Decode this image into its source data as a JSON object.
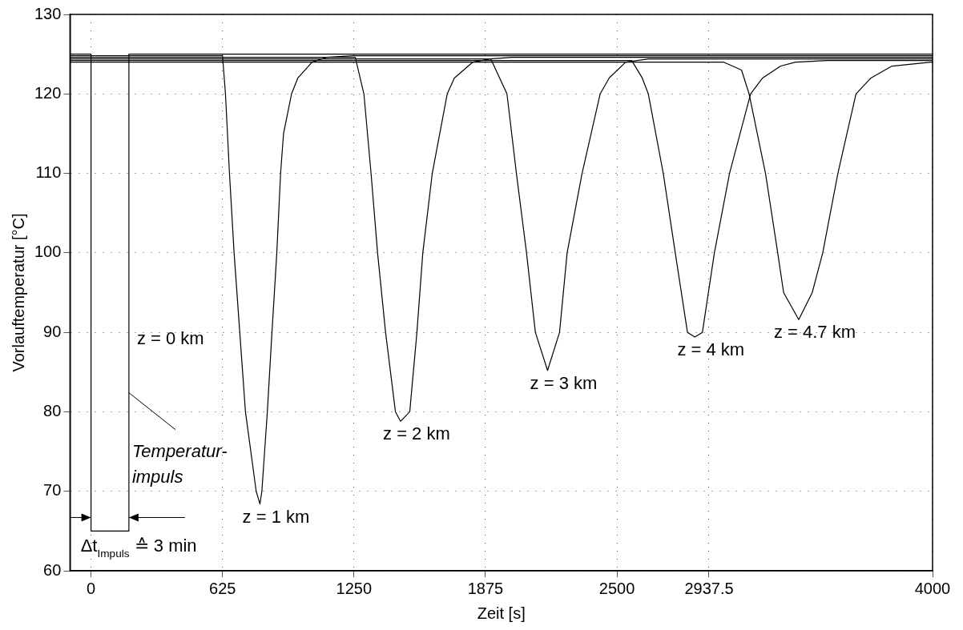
{
  "chart_data": {
    "type": "line",
    "xlabel": "Zeit [s]",
    "ylabel": "Vorlauftemperatur [°C]",
    "xlim": [
      -100,
      4000
    ],
    "xticks": [
      0,
      625,
      1250,
      1875,
      2500,
      2937.5,
      4000
    ],
    "ylim": [
      60,
      130
    ],
    "yticks": [
      60,
      70,
      80,
      90,
      100,
      110,
      120,
      130
    ],
    "grid": true,
    "series": [
      {
        "name": "z = 0 km",
        "color": "#000000",
        "x": [
          -100,
          0,
          0,
          180,
          180,
          4000
        ],
        "values": [
          125,
          125,
          65,
          65,
          125,
          125
        ]
      },
      {
        "name": "z = 1 km",
        "color": "#000000",
        "x": [
          -100,
          625,
          639,
          658,
          680,
          707,
          734,
          785,
          803,
          812,
          838,
          860,
          883,
          901,
          915,
          953,
          983,
          1051,
          1119,
          1246,
          4000
        ],
        "values": [
          124.8,
          124.8,
          120,
          110,
          100,
          90,
          80,
          70,
          68.4,
          70,
          80,
          90,
          100,
          110,
          115,
          120,
          122,
          124,
          124.6,
          124.8,
          124.8
        ]
      },
      {
        "name": "z = 2 km",
        "color": "#000000",
        "x": [
          -100,
          1256,
          1297,
          1331,
          1362,
          1400,
          1447,
          1471,
          1515,
          1549,
          1577,
          1622,
          1693,
          1727,
          1815,
          1897,
          2000,
          4000
        ],
        "values": [
          124.6,
          124.6,
          120,
          110,
          100,
          90,
          80,
          78.8,
          80,
          90,
          100,
          110,
          120,
          122,
          124,
          124.4,
          124.6,
          124.6
        ]
      },
      {
        "name": "z = 3 km",
        "color": "#000000",
        "x": [
          -100,
          1900,
          1977,
          2022,
          2070,
          2112,
          2170,
          2227,
          2263,
          2334,
          2420,
          2463,
          2541,
          2650,
          4000
        ],
        "values": [
          124.4,
          124.4,
          120,
          110,
          100,
          90,
          85.2,
          90,
          100,
          110,
          120,
          122,
          124,
          124.4,
          124.4
        ]
      },
      {
        "name": "z = 4 km",
        "color": "#000000",
        "x": [
          -100,
          2570,
          2620,
          2649,
          2720,
          2777,
          2835,
          2870,
          2906,
          2963,
          3035,
          3135,
          3192,
          3278,
          3349,
          3500,
          4000
        ],
        "values": [
          124.2,
          124.2,
          122,
          120,
          110,
          100,
          90,
          89.4,
          90,
          100,
          110,
          120,
          122,
          123.5,
          124,
          124.2,
          124.2
        ]
      },
      {
        "name": "z = 4.7 km",
        "color": "#000000",
        "x": [
          -100,
          3006,
          3092,
          3128,
          3206,
          3264,
          3292,
          3364,
          3428,
          3478,
          3550,
          3636,
          3707,
          3807,
          3993,
          4000
        ],
        "values": [
          124,
          124,
          123,
          120,
          110,
          100,
          95,
          91.6,
          95,
          100,
          110,
          120,
          122,
          123.5,
          124,
          124
        ]
      }
    ],
    "annotations": [
      {
        "text": "Temperatur-\nimpuls",
        "x": 180,
        "y": 82.4
      },
      {
        "text": "Δt$_{Impuls}$ ≙ 3 min",
        "x": 0,
        "y": 66.7
      }
    ]
  }
}
